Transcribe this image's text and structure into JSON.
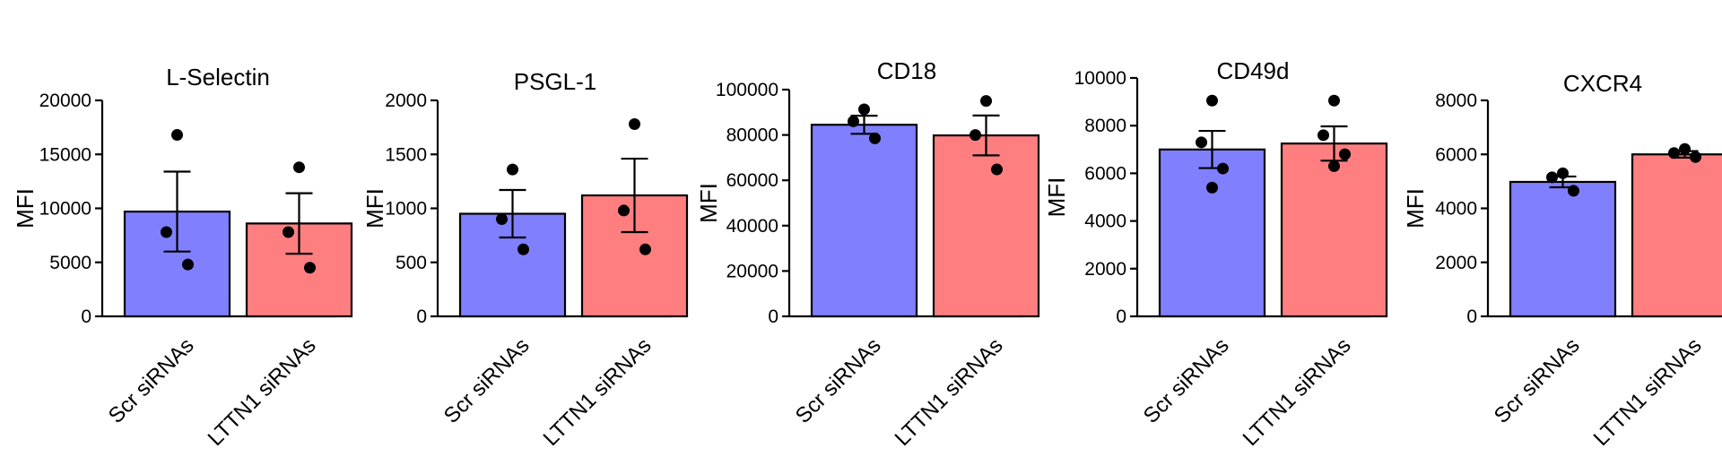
{
  "chart_data": [
    {
      "type": "bar",
      "title": "L-Selectin",
      "ylabel": "MFI",
      "categories": [
        "Scr siRNAs",
        "LTTN1 siRNAs"
      ],
      "values": [
        9700,
        8600
      ],
      "sem": [
        3700,
        2800
      ],
      "points": [
        [
          16800,
          7800,
          4800
        ],
        [
          13800,
          7800,
          4500
        ]
      ],
      "ylim": [
        0,
        20000
      ],
      "yticks": [
        0,
        5000,
        10000,
        15000,
        20000
      ],
      "ytick_labels": [
        "0",
        "5000",
        "10000",
        "15000",
        "20000"
      ],
      "colors": [
        "#8080ff",
        "#ff7f80"
      ]
    },
    {
      "type": "bar",
      "title": "PSGL-1",
      "ylabel": "MFI",
      "categories": [
        "Scr siRNAs",
        "LTTN1 siRNAs"
      ],
      "values": [
        950,
        1120
      ],
      "sem": [
        220,
        340
      ],
      "points": [
        [
          1360,
          900,
          620
        ],
        [
          1780,
          980,
          620
        ]
      ],
      "ylim": [
        0,
        2000
      ],
      "yticks": [
        0,
        500,
        1000,
        1500,
        2000
      ],
      "ytick_labels": [
        "0",
        "500",
        "1000",
        "1500",
        "2000"
      ],
      "colors": [
        "#8080ff",
        "#ff7f80"
      ]
    },
    {
      "type": "bar",
      "title": "CD18",
      "ylabel": "MFI",
      "categories": [
        "Scr siRNAs",
        "LTTN1 siRNAs"
      ],
      "values": [
        84500,
        79800
      ],
      "sem": [
        4000,
        8800
      ],
      "points": [
        [
          91300,
          86000,
          78500
        ],
        [
          95000,
          80000,
          64800
        ]
      ],
      "ylim": [
        0,
        100000
      ],
      "yticks": [
        0,
        20000,
        40000,
        60000,
        80000,
        100000
      ],
      "ytick_labels": [
        "0",
        "20000",
        "40000",
        "60000",
        "80000",
        "100000"
      ],
      "colors": [
        "#8080ff",
        "#ff7f80"
      ]
    },
    {
      "type": "bar",
      "title": "CD49d",
      "ylabel": "MFI",
      "categories": [
        "Scr siRNAs",
        "LTTN1 siRNAs"
      ],
      "values": [
        7000,
        7250
      ],
      "sem": [
        780,
        720
      ],
      "points": [
        [
          9050,
          7300,
          6200,
          5400
        ],
        [
          9050,
          7600,
          6800,
          6300
        ]
      ],
      "ylim": [
        0,
        10000
      ],
      "yticks": [
        0,
        2000,
        4000,
        6000,
        8000,
        10000
      ],
      "ytick_labels": [
        "0",
        "2000",
        "4000",
        "6000",
        "8000",
        "10000"
      ],
      "colors": [
        "#8080ff",
        "#ff7f80"
      ]
    },
    {
      "type": "bar",
      "title": "CXCR4",
      "ylabel": "MFI",
      "categories": [
        "Scr siRNAs",
        "LTTN1 siRNAs"
      ],
      "values": [
        4980,
        6000
      ],
      "sem": [
        200,
        120
      ],
      "points": [
        [
          5300,
          5150,
          4650
        ],
        [
          6200,
          6050,
          5900
        ]
      ],
      "ylim": [
        0,
        8000
      ],
      "yticks": [
        0,
        2000,
        4000,
        6000,
        8000
      ],
      "ytick_labels": [
        "0",
        "2000",
        "4000",
        "6000",
        "8000"
      ],
      "colors": [
        "#8080ff",
        "#ff7f80"
      ]
    }
  ]
}
